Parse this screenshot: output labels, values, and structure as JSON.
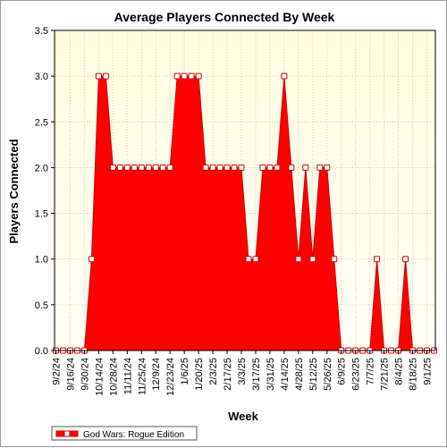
{
  "chart_data": {
    "type": "area",
    "title": "Average Players Connected By Week",
    "xlabel": "Week",
    "ylabel": "Players Connected",
    "ylim": [
      0,
      3.5
    ],
    "yticks": [
      "0.0",
      "0.5",
      "1.0",
      "1.5",
      "2.0",
      "2.5",
      "3.0",
      "3.5"
    ],
    "grid": true,
    "legend": "bottom-left",
    "colors": {
      "fill": "#ff0000",
      "line": "#cc0000",
      "plot_bg_top": "#fffde0",
      "plot_bg_bottom": "#fffff6",
      "grid": "#cfcfa0"
    },
    "x_tick_labels": [
      "9/2/24",
      "9/16/24",
      "9/30/24",
      "10/14/24",
      "10/28/24",
      "11/11/24",
      "11/25/24",
      "12/9/24",
      "12/23/24",
      "1/6/25",
      "1/20/25",
      "2/3/25",
      "2/17/25",
      "3/3/25",
      "3/17/25",
      "3/31/25",
      "4/14/25",
      "4/28/25",
      "5/12/25",
      "5/26/25",
      "6/9/25",
      "6/23/25",
      "7/7/25",
      "7/21/25",
      "8/4/25",
      "8/18/25",
      "9/1/25"
    ],
    "x": [
      "9/2/24",
      "9/9/24",
      "9/16/24",
      "9/23/24",
      "9/30/24",
      "10/7/24",
      "10/14/24",
      "10/21/24",
      "10/28/24",
      "11/4/24",
      "11/11/24",
      "11/18/24",
      "11/25/24",
      "12/2/24",
      "12/9/24",
      "12/16/24",
      "12/23/24",
      "12/30/24",
      "1/6/25",
      "1/13/25",
      "1/20/25",
      "1/27/25",
      "2/3/25",
      "2/10/25",
      "2/17/25",
      "2/24/25",
      "3/3/25",
      "3/10/25",
      "3/17/25",
      "3/24/25",
      "3/31/25",
      "4/7/25",
      "4/14/25",
      "4/21/25",
      "4/28/25",
      "5/5/25",
      "5/12/25",
      "5/19/25",
      "5/26/25",
      "6/2/25",
      "6/9/25",
      "6/16/25",
      "6/23/25",
      "6/30/25",
      "7/7/25",
      "7/14/25",
      "7/21/25",
      "7/28/25",
      "8/4/25",
      "8/11/25",
      "8/18/25",
      "8/25/25",
      "9/1/25",
      "9/8/25"
    ],
    "series": [
      {
        "name": "God Wars: Rogue Edition",
        "values": [
          0,
          0,
          0,
          0,
          0,
          1,
          3,
          3,
          2,
          2,
          2,
          2,
          2,
          2,
          2,
          2,
          2,
          3,
          3,
          3,
          3,
          2,
          2,
          2,
          2,
          2,
          2,
          1,
          1,
          2,
          2,
          2,
          3,
          2,
          1,
          2,
          1,
          2,
          2,
          1,
          0,
          0,
          0,
          0,
          0,
          1,
          0,
          0,
          0,
          1,
          0,
          0,
          0,
          0
        ]
      }
    ]
  }
}
